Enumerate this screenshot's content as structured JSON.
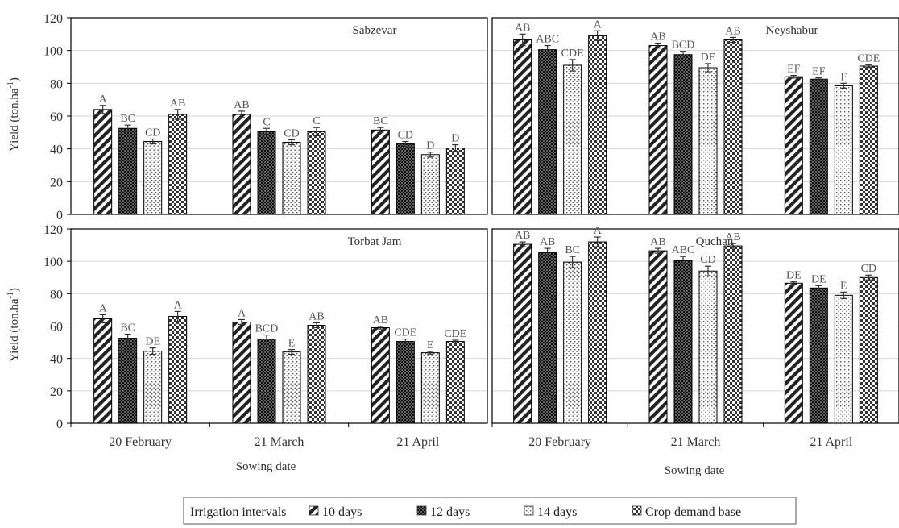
{
  "chart_data": {
    "type": "bar",
    "xlabel": "Sowing date",
    "ylabel_main": "Yield  (ton.ha",
    "ylabel_sup": "-1",
    "ylabel_close": ")",
    "ylim": [
      0,
      120
    ],
    "yticks": [
      "0",
      "20",
      "40",
      "60",
      "80",
      "100",
      "120"
    ],
    "categories": [
      "20 February",
      "21 March",
      "21 April"
    ],
    "grid": true,
    "legend": {
      "title": "Irrigation intervals",
      "placement": "bottom-center",
      "entries": [
        "10 days",
        "12 days",
        "14 days",
        "Crop demand base"
      ]
    },
    "series_patterns": [
      "diagonal-stripes",
      "dark-dots",
      "light-dots",
      "checker"
    ],
    "panels": [
      {
        "title": "Sabzevar",
        "series": [
          {
            "name": "10 days",
            "values": [
              64,
              61,
              51.5
            ],
            "errors": [
              2.5,
              2,
              1.5
            ],
            "letters": [
              "A",
              "AB",
              "BC"
            ]
          },
          {
            "name": "12 days",
            "values": [
              52.5,
              50.5,
              43
            ],
            "errors": [
              2,
              2,
              1.5
            ],
            "letters": [
              "BC",
              "C",
              "CD"
            ]
          },
          {
            "name": "14 days",
            "values": [
              44.5,
              44,
              36.5
            ],
            "errors": [
              1.5,
              1.5,
              1.5
            ],
            "letters": [
              "CD",
              "CD",
              "D"
            ]
          },
          {
            "name": "Crop demand base",
            "values": [
              61,
              50.5,
              40.5
            ],
            "errors": [
              3,
              2.5,
              2
            ],
            "letters": [
              "AB",
              "C",
              "D"
            ]
          }
        ]
      },
      {
        "title": "Neyshabur",
        "series": [
          {
            "name": "10 days",
            "values": [
              106.5,
              103,
              84
            ],
            "errors": [
              3.5,
              1.5,
              0.8
            ],
            "letters": [
              "AB",
              "AB",
              "EF"
            ]
          },
          {
            "name": "12 days",
            "values": [
              100.5,
              97.5,
              82.5
            ],
            "errors": [
              2.5,
              2,
              0.8
            ],
            "letters": [
              "ABC",
              "BCD",
              "EF"
            ]
          },
          {
            "name": "14 days",
            "values": [
              91,
              89.5,
              78.5
            ],
            "errors": [
              3.5,
              2.5,
              1.5
            ],
            "letters": [
              "CDE",
              "DE",
              "F"
            ]
          },
          {
            "name": "Crop demand base",
            "values": [
              109,
              106.5,
              90.5
            ],
            "errors": [
              3,
              1.5,
              0.8
            ],
            "letters": [
              "A",
              "AB",
              "CDE"
            ]
          }
        ]
      },
      {
        "title": "Torbat Jam",
        "series": [
          {
            "name": "10 days",
            "values": [
              64.5,
              62.5,
              59
            ],
            "errors": [
              2.5,
              1.5,
              0.8
            ],
            "letters": [
              "A",
              "A",
              "AB"
            ]
          },
          {
            "name": "12 days",
            "values": [
              52.5,
              52,
              50.5
            ],
            "errors": [
              2.5,
              2.5,
              1.5
            ],
            "letters": [
              "BC",
              "BCD",
              "CDE"
            ]
          },
          {
            "name": "14 days",
            "values": [
              44.5,
              44,
              43.5
            ],
            "errors": [
              2,
              1.5,
              0.8
            ],
            "letters": [
              "DE",
              "E",
              "E"
            ]
          },
          {
            "name": "Crop demand base",
            "values": [
              66,
              60.5,
              50.5
            ],
            "errors": [
              3,
              1.5,
              0.8
            ],
            "letters": [
              "A",
              "AB",
              "CDE"
            ]
          }
        ]
      },
      {
        "title": "Quchan",
        "series": [
          {
            "name": "10 days",
            "values": [
              110.5,
              106.5,
              86.5
            ],
            "errors": [
              1.5,
              1.5,
              0.8
            ],
            "letters": [
              "AB",
              "AB",
              "DE"
            ]
          },
          {
            "name": "12 days",
            "values": [
              105.5,
              100.5,
              83.5
            ],
            "errors": [
              2.5,
              2.5,
              1.5
            ],
            "letters": [
              "AB",
              "ABC",
              "DE"
            ]
          },
          {
            "name": "14 days",
            "values": [
              99.5,
              94,
              79
            ],
            "errors": [
              3.5,
              3,
              2
            ],
            "letters": [
              "BC",
              "CD",
              "E"
            ]
          },
          {
            "name": "Crop demand base",
            "values": [
              112,
              109.5,
              90
            ],
            "errors": [
              3,
              1.5,
              1.5
            ],
            "letters": [
              "A",
              "AB",
              "CD"
            ]
          }
        ]
      }
    ]
  }
}
